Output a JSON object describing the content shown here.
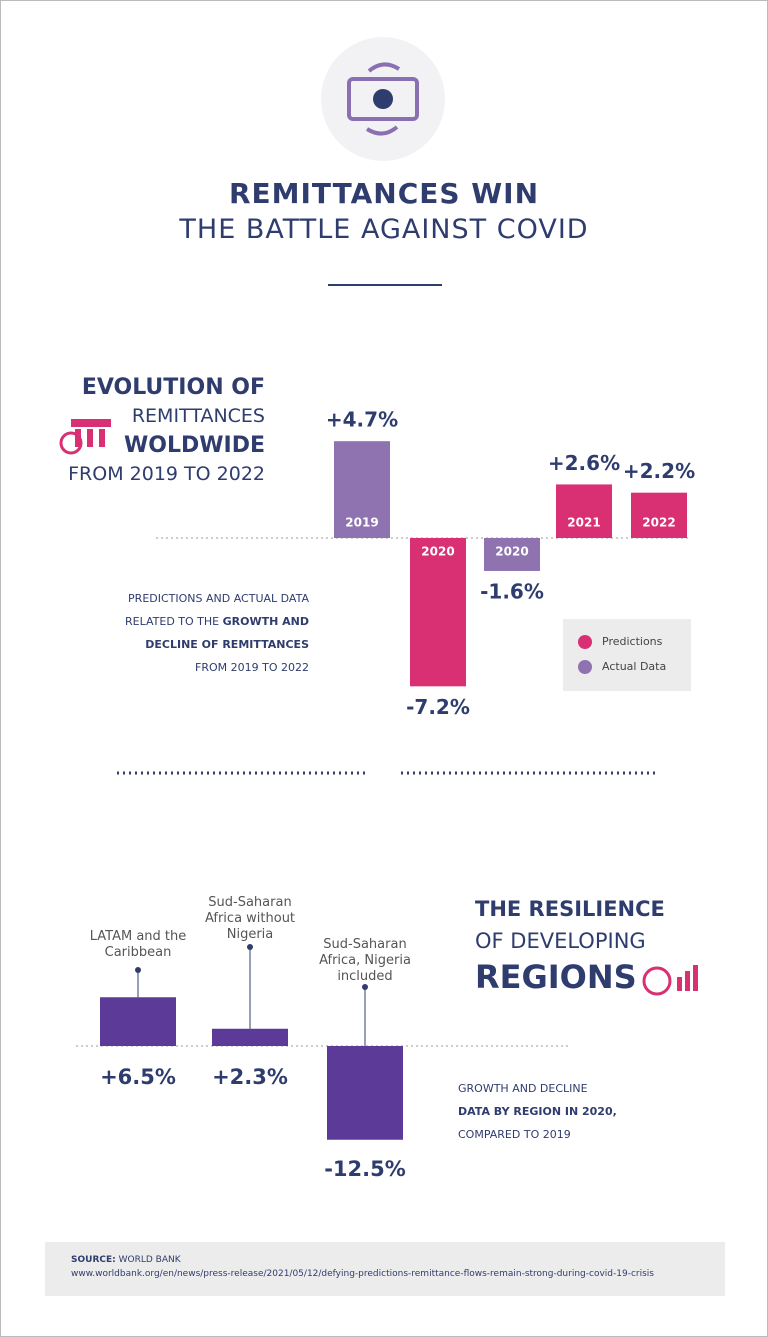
{
  "header": {
    "title": "REMITTANCES WIN",
    "subtitle": "THE BATTLE AGAINST COVID"
  },
  "chart_data": [
    {
      "type": "bar",
      "title": [
        "EVOLUTION OF",
        "REMITTANCES",
        "WOLDWIDE",
        "FROM 2019 TO 2022"
      ],
      "note": [
        "PREDICTIONS AND ACTUAL DATA",
        "RELATED TO THE",
        "GROWTH AND",
        "DECLINE OF REMITTANCES",
        "FROM 2019 TO 2022"
      ],
      "categories": [
        "2019",
        "2020",
        "2020",
        "2021",
        "2022"
      ],
      "series": [
        {
          "name": "Predictions",
          "color": "#d92f73",
          "values": [
            null,
            -7.2,
            null,
            2.6,
            2.2
          ],
          "value_labels": [
            null,
            "-7.2%",
            null,
            "+2.6%",
            "+2.2%"
          ]
        },
        {
          "name": "Actual Data",
          "color": "#8f73b1",
          "values": [
            4.7,
            null,
            -1.6,
            null,
            null
          ],
          "value_labels": [
            "+4.7%",
            null,
            "-1.6%",
            null,
            null
          ]
        }
      ]
    },
    {
      "type": "bar",
      "title": [
        "THE RESILIENCE",
        "OF DEVELOPING",
        "REGIONS"
      ],
      "note": [
        "GROWTH AND DECLINE",
        "DATA BY REGION IN 2020,",
        "COMPARED TO 2019"
      ],
      "categories": [
        "LATAM and the Caribbean",
        "Sud-Saharan Africa without Nigeria",
        "Sud-Saharan Africa, Nigeria included"
      ],
      "values": [
        6.5,
        2.3,
        -12.5
      ],
      "value_labels": [
        "+6.5%",
        "+2.3%",
        "-12.5%"
      ],
      "color": "#5b3a98"
    }
  ],
  "source": {
    "label": "SOURCE:",
    "name": "WORLD BANK",
    "url": "www.worldbank.org/en/news/press-release/2021/05/12/defying-predictions-remittance-flows-remain-strong-during-covid-19-crisis"
  }
}
